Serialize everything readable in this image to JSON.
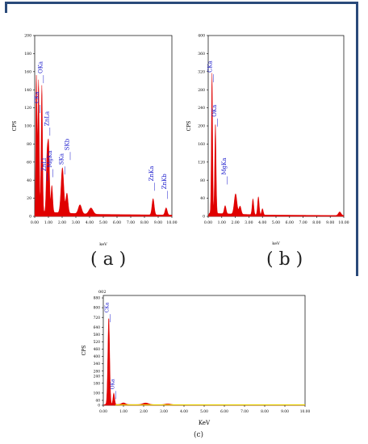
{
  "colors": {
    "frame": "#2a4a7a",
    "spectrum": "#e00000",
    "label": "#1a1acc",
    "baseline_c": "#e6d000"
  },
  "chart_data": [
    {
      "type": "area",
      "panel": "a",
      "caption": "( a )",
      "ylabel": "CPS",
      "xlabel": "keV",
      "xlim": [
        0,
        10
      ],
      "ylim": [
        0,
        200
      ],
      "xticks": [
        "0.00",
        "1.00",
        "2.00",
        "3.00",
        "4.00",
        "5.00",
        "6.00",
        "7.00",
        "8.00",
        "9.00",
        "10.00"
      ],
      "yticks": [
        "0",
        "20",
        "40",
        "60",
        "80",
        "100",
        "120",
        "140",
        "160",
        "180",
        "200"
      ],
      "baseline": 3,
      "peaks": [
        {
          "x": 0.12,
          "y": 150,
          "w": 0.05
        },
        {
          "x": 0.28,
          "y": 145,
          "w": 0.05
        },
        {
          "x": 0.52,
          "y": 140,
          "w": 0.05
        },
        {
          "x": 0.9,
          "y": 60,
          "w": 0.06
        },
        {
          "x": 1.02,
          "y": 70,
          "w": 0.06
        },
        {
          "x": 1.25,
          "y": 30,
          "w": 0.06
        },
        {
          "x": 2.02,
          "y": 50,
          "w": 0.1
        },
        {
          "x": 2.35,
          "y": 22,
          "w": 0.08
        },
        {
          "x": 3.3,
          "y": 10,
          "w": 0.12
        },
        {
          "x": 4.1,
          "y": 7,
          "w": 0.15
        },
        {
          "x": 8.63,
          "y": 18,
          "w": 0.08
        },
        {
          "x": 9.58,
          "y": 8,
          "w": 0.08
        }
      ],
      "annotations": [
        {
          "text": "CKa",
          "x": 0.28,
          "y": 125
        },
        {
          "text": "OKa",
          "x": 0.55,
          "y": 158
        },
        {
          "text": "ZnLa",
          "x": 1.02,
          "y": 100
        },
        {
          "text": "ZnLl",
          "x": 0.82,
          "y": 50
        },
        {
          "text": "MgKa",
          "x": 1.25,
          "y": 54
        },
        {
          "text": "SKa",
          "x": 2.1,
          "y": 57
        },
        {
          "text": "SKb",
          "x": 2.5,
          "y": 73
        },
        {
          "text": "ZnKa",
          "x": 8.65,
          "y": 39
        },
        {
          "text": "ZnKb",
          "x": 9.6,
          "y": 30
        }
      ]
    },
    {
      "type": "area",
      "panel": "b",
      "caption": "( b )",
      "ylabel": "CPS",
      "xlabel": "keV",
      "xlim": [
        0,
        10
      ],
      "ylim": [
        0,
        400
      ],
      "xticks": [
        "0.00",
        "1.00",
        "2.00",
        "3.00",
        "4.00",
        "5.00",
        "6.00",
        "7.00",
        "8.00",
        "9.00",
        "10.00"
      ],
      "yticks": [
        "0",
        "40",
        "80",
        "120",
        "160",
        "200",
        "240",
        "280",
        "320",
        "360",
        "400"
      ],
      "baseline": 4,
      "peaks": [
        {
          "x": 0.28,
          "y": 310,
          "w": 0.045
        },
        {
          "x": 0.53,
          "y": 200,
          "w": 0.05
        },
        {
          "x": 1.25,
          "y": 18,
          "w": 0.07
        },
        {
          "x": 2.02,
          "y": 45,
          "w": 0.1
        },
        {
          "x": 2.35,
          "y": 18,
          "w": 0.08
        },
        {
          "x": 3.3,
          "y": 35,
          "w": 0.06
        },
        {
          "x": 3.7,
          "y": 40,
          "w": 0.06
        },
        {
          "x": 4.0,
          "y": 14,
          "w": 0.06
        },
        {
          "x": 9.7,
          "y": 8,
          "w": 0.1
        }
      ],
      "annotations": [
        {
          "text": "CKa",
          "x": 0.28,
          "y": 318
        },
        {
          "text": "OKa",
          "x": 0.6,
          "y": 220
        },
        {
          "text": "MgKa",
          "x": 1.3,
          "y": 92
        }
      ]
    },
    {
      "type": "area",
      "panel": "c",
      "caption": "(c)",
      "top_label": "002",
      "ylabel": "CPS",
      "xlabel": "KeV",
      "xlim": [
        0,
        10
      ],
      "ylim": [
        0,
        900
      ],
      "xticks": [
        "0.00",
        "1.00",
        "2.00",
        "3.00",
        "4.00",
        "5.00",
        "6.00",
        "7.00",
        "8.00",
        "9.00",
        "10.00"
      ],
      "yticks": [
        "0",
        "40",
        "100",
        "180",
        "240",
        "280",
        "340",
        "400",
        "460",
        "520",
        "580",
        "640",
        "720",
        "800",
        "880"
      ],
      "ytick_values": [
        0,
        40,
        100,
        180,
        240,
        280,
        340,
        400,
        460,
        520,
        580,
        640,
        720,
        800,
        880
      ],
      "baseline": 4,
      "peaks": [
        {
          "x": 0.27,
          "y": 720,
          "w": 0.045
        },
        {
          "x": 0.52,
          "y": 95,
          "w": 0.04
        },
        {
          "x": 1.0,
          "y": 14,
          "w": 0.1
        },
        {
          "x": 2.1,
          "y": 14,
          "w": 0.15
        },
        {
          "x": 3.2,
          "y": 8,
          "w": 0.15
        }
      ],
      "annotations": [
        {
          "text": "CKa",
          "x": 0.27,
          "y": 760
        },
        {
          "text": "OKa",
          "x": 0.55,
          "y": 130
        }
      ]
    }
  ]
}
